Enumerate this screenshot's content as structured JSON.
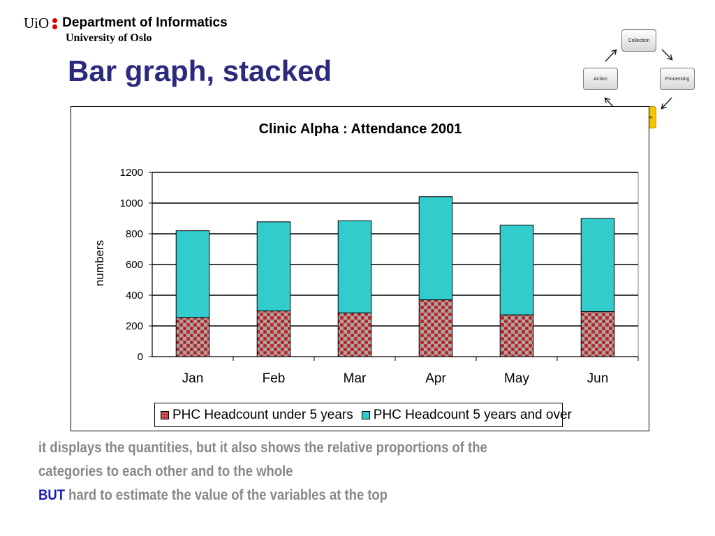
{
  "header": {
    "uio": "UiO",
    "department": "Department of Informatics",
    "university": "University of Oslo"
  },
  "slide_title": "Bar graph, stacked",
  "cycle": {
    "steps": [
      "Collection",
      "Processing",
      "Presentation",
      "Action"
    ],
    "active": "Presentation",
    "active_color": "#f7c500"
  },
  "chart_data": {
    "type": "bar",
    "stacked": true,
    "title": "Clinic Alpha : Attendance 2001",
    "xlabel": "",
    "ylabel": "numbers",
    "categories": [
      "Jan",
      "Feb",
      "Mar",
      "Apr",
      "May",
      "Jun"
    ],
    "ylim": [
      0,
      1200
    ],
    "yticks": [
      0,
      200,
      400,
      600,
      800,
      1000,
      1200
    ],
    "grid": true,
    "legend_position": "bottom",
    "series": [
      {
        "name": "PHC Headcount under 5 years",
        "values": [
          255,
          298,
          285,
          370,
          272,
          293
        ],
        "color": "#cc3333",
        "pattern": "checkered"
      },
      {
        "name": "PHC Headcount 5 years and over",
        "values": [
          565,
          580,
          600,
          672,
          585,
          607
        ],
        "color": "#33cccc"
      }
    ]
  },
  "bottom": {
    "line1": "it displays the quantities, but it also shows the relative proportions of the",
    "line2": "categories to each other and to the whole",
    "but": "BUT",
    "line3": " hard to estimate the value of the variables at the top"
  }
}
